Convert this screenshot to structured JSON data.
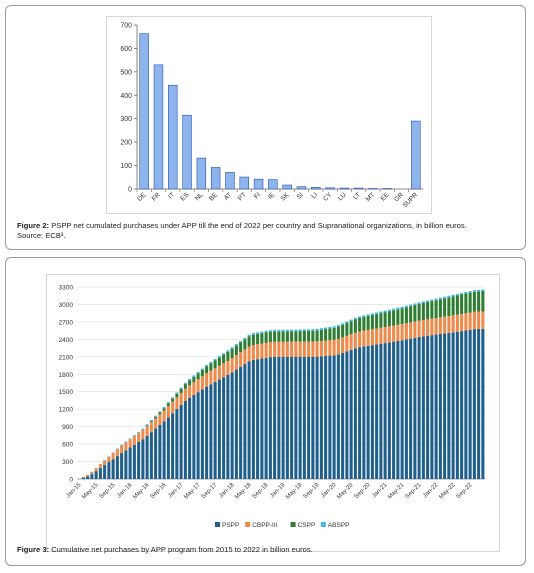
{
  "figure2": {
    "caption_label": "Figure 2:",
    "caption_text": " PSPP net cumulated purchases under APP till the end of 2022 per country and Supranational organizations, in billion euros.",
    "caption_source": "Source: ECB³.",
    "chart_data": {
      "type": "bar",
      "categories": [
        "DE",
        "FR",
        "IT",
        "ES",
        "NL",
        "BE",
        "AT",
        "PT",
        "FI",
        "IE",
        "SK",
        "SI",
        "LI",
        "CY",
        "LU",
        "LT",
        "MT",
        "EE",
        "GR",
        "SUPR"
      ],
      "values": [
        663,
        530,
        443,
        315,
        132,
        92,
        71,
        51,
        42,
        40,
        17,
        10,
        7,
        5,
        4,
        4,
        2,
        2,
        0,
        290
      ],
      "ylim": [
        0,
        700
      ],
      "yticks": [
        "0",
        "100",
        "200",
        "300",
        "400",
        "500",
        "600",
        "700"
      ],
      "bar_color": "#8eb4ee",
      "bar_edge": "#2b55a5",
      "grid": false
    }
  },
  "figure3": {
    "caption_label": "Figure 3:",
    "caption_text": " Cumulative net purchases by APP program from 2015 to 2022 in billion euros.",
    "chart_data": {
      "type": "bar",
      "stacked": true,
      "ylim": [
        0,
        3300
      ],
      "yticks": [
        "0",
        "300",
        "600",
        "900",
        "1200",
        "1500",
        "1800",
        "2100",
        "2400",
        "2700",
        "3000",
        "3300"
      ],
      "x_tick_labels": [
        "Jan-15",
        "May-15",
        "Sep-15",
        "Jan-16",
        "May-16",
        "Sep-16",
        "Jan-17",
        "May-17",
        "Sep-17",
        "Jan-18",
        "May-18",
        "Sep-18",
        "Jan-19",
        "May-19",
        "Sep-19",
        "Jan-20",
        "May-20",
        "Sep-20",
        "Jan-21",
        "May-21",
        "Sep-21",
        "Jan-22",
        "May-22",
        "Sep-22"
      ],
      "grid": true,
      "legend_position": "bottom",
      "series": [
        {
          "name": "PSPP",
          "color": "#1f5f8b",
          "knots": [
            [
              0,
              0
            ],
            [
              3,
              60
            ],
            [
              6,
              190
            ],
            [
              12,
              450
            ],
            [
              18,
              690
            ],
            [
              24,
              1000
            ],
            [
              30,
              1360
            ],
            [
              36,
              1600
            ],
            [
              42,
              1800
            ],
            [
              48,
              2040
            ],
            [
              54,
              2100
            ],
            [
              60,
              2100
            ],
            [
              66,
              2100
            ],
            [
              72,
              2130
            ],
            [
              78,
              2260
            ],
            [
              84,
              2320
            ],
            [
              90,
              2380
            ],
            [
              96,
              2450
            ],
            [
              102,
              2500
            ],
            [
              108,
              2550
            ],
            [
              111,
              2580
            ],
            [
              113,
              2580
            ]
          ]
        },
        {
          "name": "CBPP-III",
          "color": "#f08a4b",
          "knots": [
            [
              0,
              0
            ],
            [
              3,
              30
            ],
            [
              12,
              130
            ],
            [
              24,
              190
            ],
            [
              36,
              230
            ],
            [
              48,
              255
            ],
            [
              60,
              260
            ],
            [
              72,
              265
            ],
            [
              84,
              275
            ],
            [
              96,
              280
            ],
            [
              108,
              295
            ],
            [
              113,
              300
            ]
          ]
        },
        {
          "name": "CSPP",
          "color": "#2e7d32",
          "knots": [
            [
              0,
              0
            ],
            [
              17,
              0
            ],
            [
              18,
              5
            ],
            [
              24,
              40
            ],
            [
              36,
              120
            ],
            [
              42,
              160
            ],
            [
              48,
              178
            ],
            [
              60,
              180
            ],
            [
              66,
              185
            ],
            [
              72,
              210
            ],
            [
              84,
              250
            ],
            [
              96,
              290
            ],
            [
              108,
              340
            ],
            [
              113,
              350
            ]
          ]
        },
        {
          "name": "ABSPP",
          "color": "#48b9e0",
          "knots": [
            [
              0,
              0
            ],
            [
              3,
              3
            ],
            [
              12,
              15
            ],
            [
              24,
              22
            ],
            [
              36,
              25
            ],
            [
              48,
              27
            ],
            [
              60,
              28
            ],
            [
              84,
              28
            ],
            [
              108,
              27
            ],
            [
              113,
              27
            ]
          ]
        }
      ],
      "n_months": 96
    }
  }
}
